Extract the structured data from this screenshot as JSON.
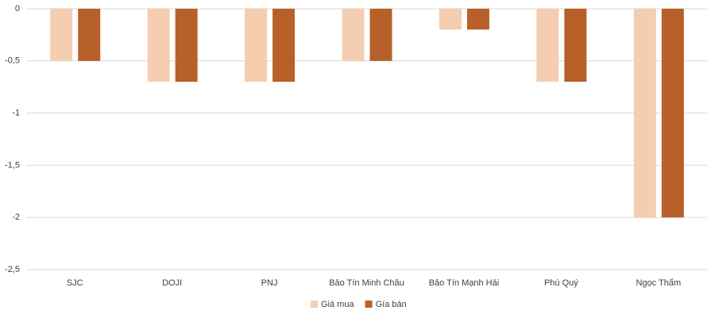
{
  "chart_data": {
    "type": "bar",
    "categories": [
      "SJC",
      "DOJI",
      "PNJ",
      "Bảo Tín Minh Châu",
      "Bảo Tín Mạnh Hải",
      "Phú Quý",
      "Ngọc Thẩm"
    ],
    "series": [
      {
        "name": "Giá mua",
        "color": "#f5cdb0",
        "values": [
          -0.5,
          -0.7,
          -0.7,
          -0.5,
          -0.2,
          -0.7,
          -2
        ]
      },
      {
        "name": "Gía bán",
        "color": "#b8602a",
        "values": [
          -0.5,
          -0.7,
          -0.7,
          -0.5,
          -0.2,
          -0.7,
          -2
        ]
      }
    ],
    "ylim": [
      -2.5,
      0
    ],
    "yticks": [
      0,
      {
        "value": -0.5,
        "label": "-0,5"
      },
      -1,
      {
        "value": -1.5,
        "label": "-1,5"
      },
      -2,
      {
        "value": -2.5,
        "label": "-2,5"
      }
    ],
    "grid": true,
    "legend": "bottom"
  }
}
